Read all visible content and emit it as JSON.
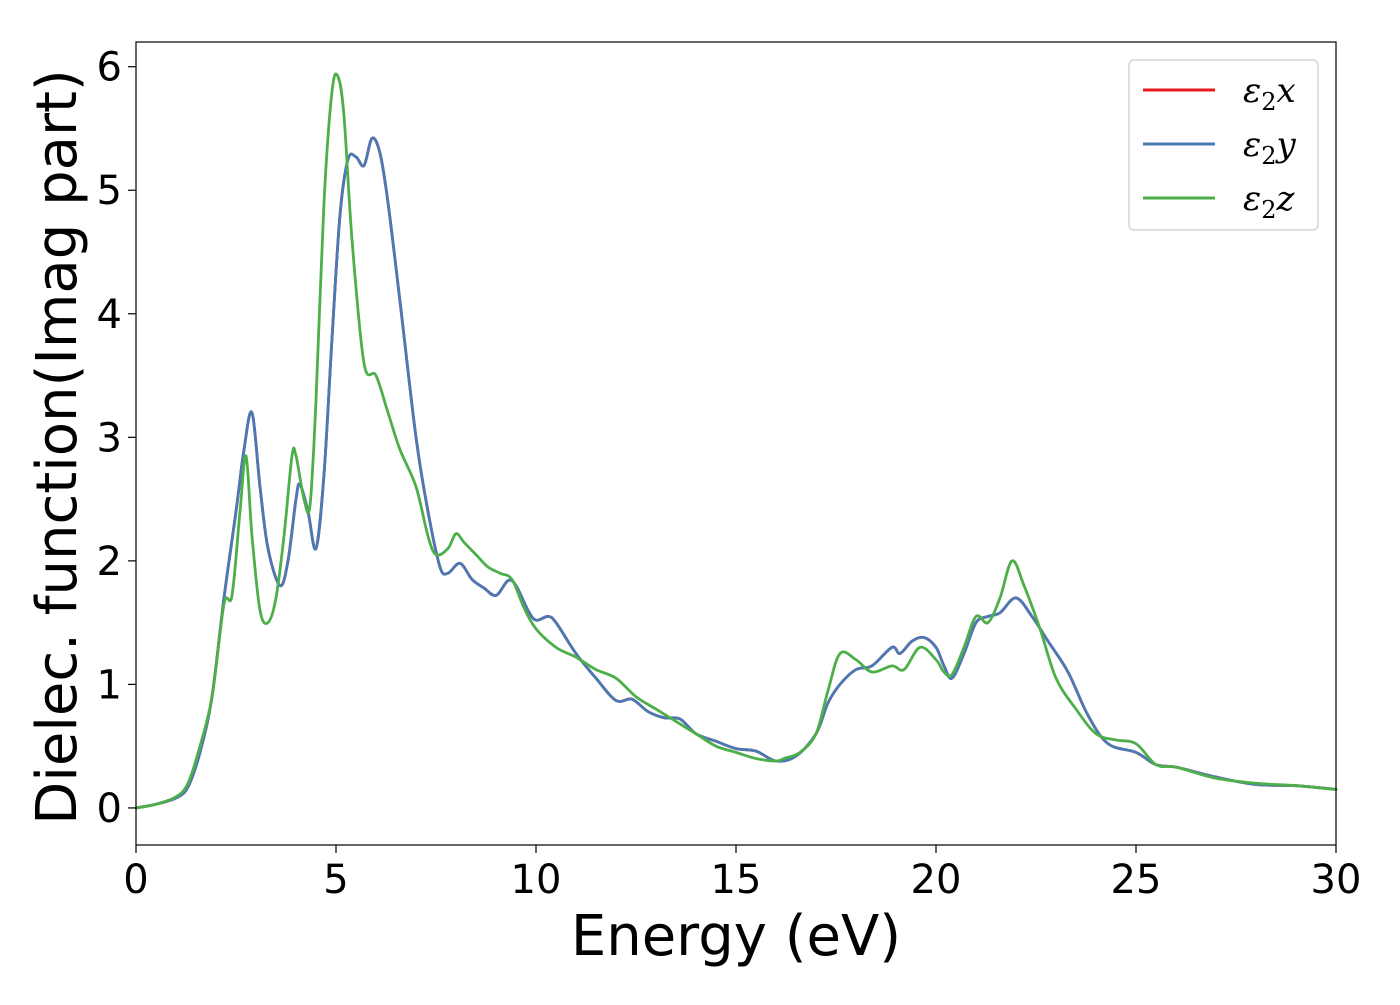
{
  "chart_data": {
    "type": "line",
    "title": "",
    "xlabel": "Energy (eV)",
    "ylabel": "Dielec. function(Imag part)",
    "xlim": [
      0,
      30
    ],
    "ylim": [
      -0.3,
      6.2
    ],
    "xticks": [
      0,
      5,
      10,
      15,
      20,
      25,
      30
    ],
    "yticks": [
      0,
      1,
      2,
      3,
      4,
      5,
      6
    ],
    "grid": false,
    "legend_placement": "top-right",
    "series": [
      {
        "name": "ε₂x",
        "legend_base": "ε",
        "legend_sub": "2",
        "legend_var": "x",
        "color": "#e41a1c",
        "x": [
          0,
          0.5,
          1.0,
          1.3,
          1.6,
          1.9,
          2.2,
          2.5,
          2.7,
          2.9,
          3.1,
          3.3,
          3.6,
          3.8,
          4.0,
          4.1,
          4.3,
          4.5,
          4.7,
          4.9,
          5.1,
          5.3,
          5.5,
          5.7,
          5.9,
          6.1,
          6.3,
          6.6,
          7.0,
          7.3,
          7.6,
          7.8,
          8.1,
          8.4,
          8.7,
          9.0,
          9.3,
          9.5,
          9.8,
          10.0,
          10.3,
          10.5,
          11.0,
          11.5,
          12.0,
          12.4,
          12.8,
          13.2,
          13.6,
          14.0,
          14.5,
          15.0,
          15.5,
          16.0,
          16.5,
          17.0,
          17.3,
          17.6,
          18.0,
          18.4,
          18.9,
          19.1,
          19.4,
          19.7,
          20.0,
          20.2,
          20.4,
          20.7,
          21.0,
          21.3,
          21.6,
          22.0,
          22.4,
          22.8,
          23.3,
          23.8,
          24.3,
          25.0,
          25.5,
          26.0,
          27.0,
          28.0,
          29.0,
          30.0
        ],
        "y": [
          0.0,
          0.03,
          0.08,
          0.17,
          0.45,
          0.9,
          1.7,
          2.4,
          2.9,
          3.2,
          2.6,
          2.1,
          1.8,
          2.0,
          2.5,
          2.62,
          2.4,
          2.1,
          2.7,
          3.8,
          4.8,
          5.25,
          5.27,
          5.2,
          5.42,
          5.3,
          4.9,
          4.1,
          3.0,
          2.4,
          1.95,
          1.9,
          1.98,
          1.85,
          1.78,
          1.72,
          1.84,
          1.8,
          1.6,
          1.52,
          1.55,
          1.5,
          1.25,
          1.05,
          0.87,
          0.88,
          0.78,
          0.73,
          0.72,
          0.6,
          0.54,
          0.48,
          0.46,
          0.38,
          0.42,
          0.6,
          0.85,
          1.0,
          1.12,
          1.15,
          1.3,
          1.25,
          1.35,
          1.38,
          1.3,
          1.15,
          1.05,
          1.25,
          1.5,
          1.55,
          1.58,
          1.7,
          1.55,
          1.35,
          1.1,
          0.75,
          0.52,
          0.45,
          0.35,
          0.33,
          0.25,
          0.19,
          0.18,
          0.15
        ]
      },
      {
        "name": "ε₂y",
        "legend_base": "ε",
        "legend_sub": "2",
        "legend_var": "y",
        "color": "#4a7ab5",
        "x": [
          0,
          0.5,
          1.0,
          1.3,
          1.6,
          1.9,
          2.2,
          2.5,
          2.7,
          2.9,
          3.1,
          3.3,
          3.6,
          3.8,
          4.0,
          4.1,
          4.3,
          4.5,
          4.7,
          4.9,
          5.1,
          5.3,
          5.5,
          5.7,
          5.9,
          6.1,
          6.3,
          6.6,
          7.0,
          7.3,
          7.6,
          7.8,
          8.1,
          8.4,
          8.7,
          9.0,
          9.3,
          9.5,
          9.8,
          10.0,
          10.3,
          10.5,
          11.0,
          11.5,
          12.0,
          12.4,
          12.8,
          13.2,
          13.6,
          14.0,
          14.5,
          15.0,
          15.5,
          16.0,
          16.5,
          17.0,
          17.3,
          17.6,
          18.0,
          18.4,
          18.9,
          19.1,
          19.4,
          19.7,
          20.0,
          20.2,
          20.4,
          20.7,
          21.0,
          21.3,
          21.6,
          22.0,
          22.4,
          22.8,
          23.3,
          23.8,
          24.3,
          25.0,
          25.5,
          26.0,
          27.0,
          28.0,
          29.0,
          30.0
        ],
        "y": [
          0.0,
          0.03,
          0.08,
          0.17,
          0.45,
          0.9,
          1.7,
          2.4,
          2.9,
          3.2,
          2.6,
          2.1,
          1.8,
          2.0,
          2.5,
          2.62,
          2.4,
          2.1,
          2.7,
          3.8,
          4.8,
          5.25,
          5.27,
          5.2,
          5.42,
          5.3,
          4.9,
          4.1,
          3.0,
          2.4,
          1.95,
          1.9,
          1.98,
          1.85,
          1.78,
          1.72,
          1.84,
          1.8,
          1.6,
          1.52,
          1.55,
          1.5,
          1.25,
          1.05,
          0.87,
          0.88,
          0.78,
          0.73,
          0.72,
          0.6,
          0.54,
          0.48,
          0.46,
          0.38,
          0.42,
          0.6,
          0.85,
          1.0,
          1.12,
          1.15,
          1.3,
          1.25,
          1.35,
          1.38,
          1.3,
          1.15,
          1.05,
          1.25,
          1.5,
          1.55,
          1.58,
          1.7,
          1.55,
          1.35,
          1.1,
          0.75,
          0.52,
          0.45,
          0.35,
          0.33,
          0.25,
          0.19,
          0.18,
          0.15
        ]
      },
      {
        "name": "ε₂z",
        "legend_base": "ε",
        "legend_sub": "2",
        "legend_var": "z",
        "color": "#4daf4a",
        "x": [
          0,
          0.5,
          1.0,
          1.3,
          1.6,
          1.9,
          2.2,
          2.4,
          2.6,
          2.75,
          2.9,
          3.1,
          3.3,
          3.5,
          3.7,
          3.9,
          4.0,
          4.2,
          4.35,
          4.5,
          4.7,
          4.9,
          5.05,
          5.2,
          5.4,
          5.7,
          6.0,
          6.3,
          6.6,
          7.0,
          7.3,
          7.5,
          7.8,
          8.0,
          8.2,
          8.5,
          8.8,
          9.1,
          9.4,
          9.7,
          10.0,
          10.5,
          11.0,
          11.5,
          12.0,
          12.5,
          13.0,
          13.5,
          14.0,
          14.5,
          15.0,
          15.5,
          16.0,
          16.2,
          16.6,
          17.0,
          17.3,
          17.6,
          18.0,
          18.4,
          18.9,
          19.2,
          19.6,
          20.0,
          20.2,
          20.4,
          20.7,
          21.0,
          21.3,
          21.6,
          21.9,
          22.2,
          22.6,
          23.0,
          23.5,
          24.0,
          24.5,
          25.0,
          25.5,
          26.0,
          27.0,
          28.0,
          29.0,
          30.0
        ],
        "y": [
          0.0,
          0.03,
          0.09,
          0.2,
          0.5,
          0.9,
          1.65,
          1.72,
          2.4,
          2.85,
          2.2,
          1.6,
          1.5,
          1.7,
          2.2,
          2.85,
          2.85,
          2.5,
          2.45,
          3.3,
          4.9,
          5.8,
          5.92,
          5.6,
          4.6,
          3.6,
          3.5,
          3.2,
          2.9,
          2.6,
          2.2,
          2.05,
          2.1,
          2.22,
          2.15,
          2.05,
          1.95,
          1.9,
          1.85,
          1.62,
          1.45,
          1.3,
          1.22,
          1.12,
          1.05,
          0.9,
          0.8,
          0.7,
          0.6,
          0.5,
          0.45,
          0.4,
          0.38,
          0.4,
          0.45,
          0.6,
          0.95,
          1.25,
          1.2,
          1.1,
          1.15,
          1.12,
          1.3,
          1.2,
          1.1,
          1.08,
          1.3,
          1.55,
          1.5,
          1.7,
          2.0,
          1.8,
          1.45,
          1.05,
          0.8,
          0.6,
          0.55,
          0.52,
          0.35,
          0.33,
          0.24,
          0.2,
          0.18,
          0.15
        ]
      }
    ]
  }
}
